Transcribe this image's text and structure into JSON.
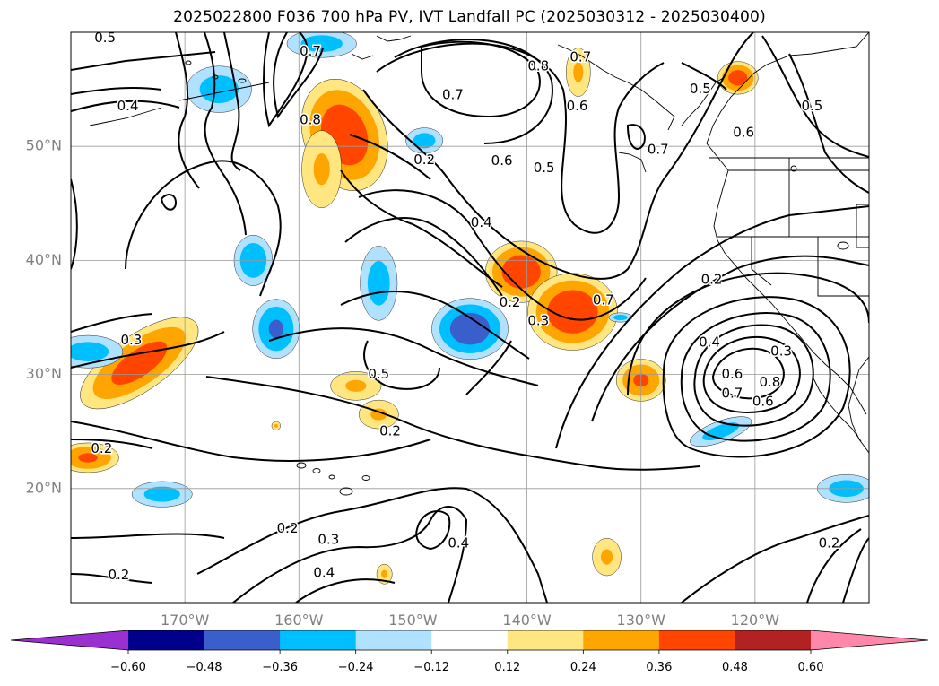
{
  "title": "2025022800 F036 700 hPa PV, IVT Landfall PC (2025030312 - 2025030400)",
  "colors": {
    "negative": [
      "#9b30d0",
      "#00008b",
      "#3a5fcd",
      "#00bfff",
      "#b0e2ff"
    ],
    "neutral": "#ffffff",
    "positive": [
      "#ffe680",
      "#ffa500",
      "#ff4500",
      "#b22222",
      "#ff88aa"
    ],
    "contour": "#000000",
    "grid": "#999999",
    "coast": "#000000"
  },
  "chart_data": {
    "type": "heatmap",
    "title": "2025022800 F036 700 hPa PV, IVT Landfall PC (2025030312 - 2025030400)",
    "xlim": [
      -180,
      -110
    ],
    "ylim": [
      10,
      60
    ],
    "lat_ticks": [
      {
        "value": 20,
        "label": "20°N"
      },
      {
        "value": 30,
        "label": "30°N"
      },
      {
        "value": 40,
        "label": "40°N"
      },
      {
        "value": 50,
        "label": "50°N"
      }
    ],
    "lon_ticks": [
      {
        "value": -170,
        "label": "170°W"
      },
      {
        "value": -160,
        "label": "160°W"
      },
      {
        "value": -150,
        "label": "150°W"
      },
      {
        "value": -140,
        "label": "140°W"
      },
      {
        "value": -130,
        "label": "130°W"
      },
      {
        "value": -120,
        "label": "120°W"
      }
    ],
    "grid": true,
    "colorbar": {
      "levels": [
        -0.6,
        -0.48,
        -0.36,
        -0.24,
        -0.12,
        0.12,
        0.24,
        0.36,
        0.48,
        0.6
      ],
      "tick_labels": [
        "−0.60",
        "−0.48",
        "−0.36",
        "−0.24",
        "−0.12",
        "0.12",
        "0.24",
        "0.36",
        "0.48",
        "0.60"
      ],
      "extend": "both"
    },
    "shaded_features": [
      {
        "lon": -156,
        "lat": 51,
        "rx": 3.2,
        "ry": 4.5,
        "rot": -20,
        "value": 0.45
      },
      {
        "lon": -158,
        "lat": 48,
        "rx": 1.8,
        "ry": 3.5,
        "rot": 0,
        "value": 0.26
      },
      {
        "lon": -174,
        "lat": 31,
        "rx": 5.5,
        "ry": 2.2,
        "rot": -35,
        "value": 0.42
      },
      {
        "lon": -178.5,
        "lat": 22.7,
        "rx": 2.5,
        "ry": 1.2,
        "rot": 0,
        "value": 0.38
      },
      {
        "lon": -140.5,
        "lat": 39,
        "rx": 2.8,
        "ry": 2.4,
        "rot": 0,
        "value": 0.45
      },
      {
        "lon": -136,
        "lat": 35.5,
        "rx": 3.5,
        "ry": 3.0,
        "rot": 0,
        "value": 0.46
      },
      {
        "lon": -130,
        "lat": 29.5,
        "rx": 2.0,
        "ry": 1.7,
        "rot": 0,
        "value": 0.38
      },
      {
        "lon": -155,
        "lat": 29,
        "rx": 2.3,
        "ry": 1.3,
        "rot": 0,
        "value": 0.26
      },
      {
        "lon": -153,
        "lat": 26.5,
        "rx": 1.8,
        "ry": 1.3,
        "rot": 0,
        "value": 0.26
      },
      {
        "lon": -121.5,
        "lat": 56,
        "rx": 1.6,
        "ry": 1.3,
        "rot": 0,
        "value": 0.42
      },
      {
        "lon": -135.5,
        "lat": 56.5,
        "rx": 1.1,
        "ry": 2.2,
        "rot": 0,
        "value": 0.26
      },
      {
        "lon": -133,
        "lat": 14,
        "rx": 1.3,
        "ry": 1.7,
        "rot": 0,
        "value": 0.26
      },
      {
        "lon": -152.5,
        "lat": 12.5,
        "rx": 0.7,
        "ry": 0.9,
        "rot": 0,
        "value": 0.26
      },
      {
        "lon": -162,
        "lat": 25.5,
        "rx": 0.4,
        "ry": 0.4,
        "rot": 0,
        "value": 0.26
      },
      {
        "lon": -145,
        "lat": 34,
        "rx": 3.0,
        "ry": 2.4,
        "rot": 0,
        "value": -0.44
      },
      {
        "lon": -164,
        "lat": 40,
        "rx": 1.6,
        "ry": 2.1,
        "rot": 0,
        "value": -0.34
      },
      {
        "lon": -162,
        "lat": 34,
        "rx": 1.9,
        "ry": 2.4,
        "rot": 0,
        "value": -0.38
      },
      {
        "lon": -167,
        "lat": 55,
        "rx": 2.8,
        "ry": 2.0,
        "rot": 0,
        "value": -0.3
      },
      {
        "lon": -149,
        "lat": 50.5,
        "rx": 1.6,
        "ry": 1.1,
        "rot": 0,
        "value": -0.3
      },
      {
        "lon": -153,
        "lat": 38,
        "rx": 1.6,
        "ry": 3.2,
        "rot": 0,
        "value": -0.3
      },
      {
        "lon": -178.5,
        "lat": 32,
        "rx": 3.0,
        "ry": 1.4,
        "rot": 0,
        "value": -0.3
      },
      {
        "lon": -172,
        "lat": 19.5,
        "rx": 2.6,
        "ry": 1.1,
        "rot": 0,
        "value": -0.3
      },
      {
        "lon": -123,
        "lat": 25,
        "rx": 2.8,
        "ry": 0.9,
        "rot": -20,
        "value": -0.3
      },
      {
        "lon": -112,
        "lat": 20,
        "rx": 2.5,
        "ry": 1.2,
        "rot": 0,
        "value": -0.3
      },
      {
        "lon": -158,
        "lat": 59,
        "rx": 3.0,
        "ry": 1.2,
        "rot": 0,
        "value": -0.3
      },
      {
        "lon": -131.8,
        "lat": 35,
        "rx": 1.0,
        "ry": 0.4,
        "rot": 0,
        "value": -0.3
      }
    ],
    "contour_labels": [
      {
        "text": "0.5",
        "lon": -177,
        "lat": 59.5
      },
      {
        "text": "0.7",
        "lon": -159,
        "lat": 58.3
      },
      {
        "text": "0.4",
        "lon": -175,
        "lat": 53.5
      },
      {
        "text": "0.8",
        "lon": -159,
        "lat": 52.3
      },
      {
        "text": "0.2",
        "lon": -149,
        "lat": 48.8
      },
      {
        "text": "0.7",
        "lon": -146.5,
        "lat": 54.5
      },
      {
        "text": "0.6",
        "lon": -142.2,
        "lat": 48.7
      },
      {
        "text": "0.4",
        "lon": -144,
        "lat": 43.3
      },
      {
        "text": "0.8",
        "lon": -139,
        "lat": 57
      },
      {
        "text": "0.5",
        "lon": -138.5,
        "lat": 48.1
      },
      {
        "text": "0.6",
        "lon": -135.6,
        "lat": 53.5
      },
      {
        "text": "0.7",
        "lon": -135.3,
        "lat": 57.8
      },
      {
        "text": "0.7",
        "lon": -128.5,
        "lat": 49.7
      },
      {
        "text": "0.5",
        "lon": -124.8,
        "lat": 55
      },
      {
        "text": "0.6",
        "lon": -121,
        "lat": 51.2
      },
      {
        "text": "0.5",
        "lon": -115,
        "lat": 53.5
      },
      {
        "text": "0.2",
        "lon": -141.5,
        "lat": 36.3
      },
      {
        "text": "0.3",
        "lon": -139,
        "lat": 34.7
      },
      {
        "text": "0.7",
        "lon": -133.3,
        "lat": 36.5
      },
      {
        "text": "0.2",
        "lon": -123.8,
        "lat": 38.3
      },
      {
        "text": "0.3",
        "lon": -174.7,
        "lat": 33
      },
      {
        "text": "0.5",
        "lon": -153,
        "lat": 30
      },
      {
        "text": "0.4",
        "lon": -124,
        "lat": 32.8
      },
      {
        "text": "0.3",
        "lon": -117.7,
        "lat": 32
      },
      {
        "text": "0.6",
        "lon": -122,
        "lat": 30
      },
      {
        "text": "0.8",
        "lon": -118.7,
        "lat": 29.3
      },
      {
        "text": "0.7",
        "lon": -122,
        "lat": 28.3
      },
      {
        "text": "0.6",
        "lon": -119.3,
        "lat": 27.6
      },
      {
        "text": "0.2",
        "lon": -177.3,
        "lat": 23.5
      },
      {
        "text": "0.2",
        "lon": -152,
        "lat": 25
      },
      {
        "text": "0.2",
        "lon": -161,
        "lat": 16.5
      },
      {
        "text": "0.3",
        "lon": -157.4,
        "lat": 15.5
      },
      {
        "text": "0.4",
        "lon": -146,
        "lat": 15.2
      },
      {
        "text": "0.4",
        "lon": -157.8,
        "lat": 12.6
      },
      {
        "text": "0.2",
        "lon": -175.8,
        "lat": 12.4
      },
      {
        "text": "0.2",
        "lon": -113.5,
        "lat": 15.2
      }
    ],
    "contour_levels": [
      0.2,
      0.3,
      0.4,
      0.5,
      0.6,
      0.7,
      0.8
    ]
  }
}
